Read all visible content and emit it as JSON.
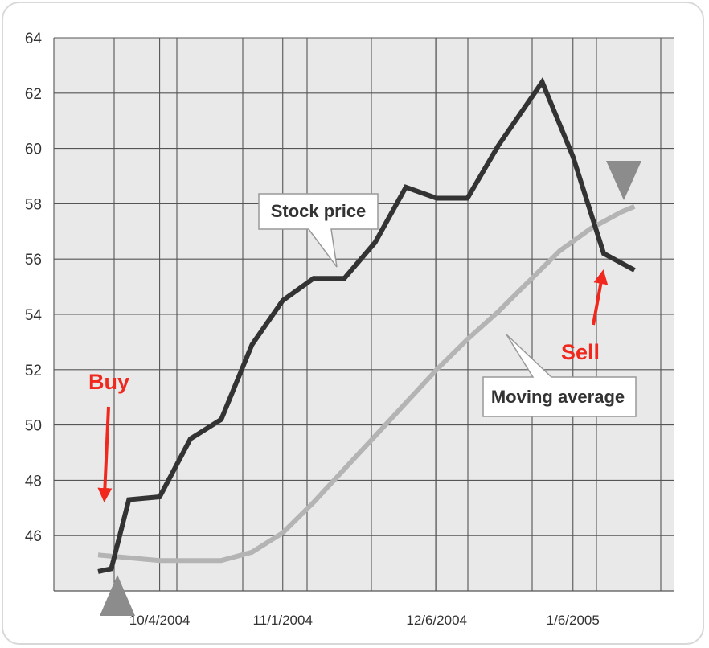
{
  "chart_data": {
    "type": "line",
    "title": "",
    "xlabel": "",
    "ylabel": "",
    "ylim": [
      44,
      64
    ],
    "y_ticks": [
      "46",
      "48",
      "50",
      "52",
      "54",
      "56",
      "58",
      "60",
      "62",
      "64"
    ],
    "x_ticks": [
      "10/4/2004",
      "11/1/2004",
      "12/6/2004",
      "1/6/2005"
    ],
    "grid": true,
    "series": [
      {
        "name": "Stock price",
        "color": "#333333",
        "points": [
          [
            "2004-09-20",
            44.7
          ],
          [
            "2004-09-23",
            44.8
          ],
          [
            "2004-09-27",
            47.3
          ],
          [
            "2004-10-04",
            47.4
          ],
          [
            "2004-10-11",
            49.5
          ],
          [
            "2004-10-18",
            50.2
          ],
          [
            "2004-10-25",
            52.9
          ],
          [
            "2004-11-01",
            54.5
          ],
          [
            "2004-11-08",
            55.3
          ],
          [
            "2004-11-15",
            55.3
          ],
          [
            "2004-11-22",
            56.6
          ],
          [
            "2004-11-29",
            58.6
          ],
          [
            "2004-12-06",
            58.2
          ],
          [
            "2004-12-13",
            58.2
          ],
          [
            "2004-12-20",
            60.1
          ],
          [
            "2004-12-30",
            62.4
          ],
          [
            "2005-01-06",
            59.7
          ],
          [
            "2005-01-13",
            56.2
          ],
          [
            "2005-01-20",
            55.6
          ]
        ]
      },
      {
        "name": "Moving average",
        "color": "#b4b4b4",
        "points": [
          [
            "2004-09-20",
            45.3
          ],
          [
            "2004-09-27",
            45.2
          ],
          [
            "2004-10-04",
            45.1
          ],
          [
            "2004-10-11",
            45.1
          ],
          [
            "2004-10-18",
            45.1
          ],
          [
            "2004-10-25",
            45.4
          ],
          [
            "2004-11-01",
            46.1
          ],
          [
            "2004-11-08",
            47.2
          ],
          [
            "2004-11-15",
            48.4
          ],
          [
            "2004-11-22",
            49.6
          ],
          [
            "2004-11-29",
            50.8
          ],
          [
            "2004-12-06",
            52.0
          ],
          [
            "2004-12-13",
            53.1
          ],
          [
            "2004-12-20",
            54.1
          ],
          [
            "2004-12-27",
            55.2
          ],
          [
            "2005-01-03",
            56.3
          ],
          [
            "2005-01-10",
            57.1
          ],
          [
            "2005-01-17",
            57.7
          ],
          [
            "2005-01-20",
            57.9
          ]
        ]
      }
    ],
    "annotations": {
      "stock_price_callout": "Stock price",
      "moving_average_callout": "Moving average",
      "buy_label": "Buy",
      "sell_label": "Sell",
      "buy_marker": {
        "x": "2004-09-26",
        "shape": "up-triangle",
        "color": "#8c8c8c"
      },
      "sell_marker": {
        "x": "2005-01-14",
        "y": 58.5,
        "shape": "down-triangle",
        "color": "#8c8c8c"
      }
    },
    "colors": {
      "plot_background": "#e9e9e9",
      "grid": "#555555",
      "annotation_red": "#f0281e"
    }
  }
}
